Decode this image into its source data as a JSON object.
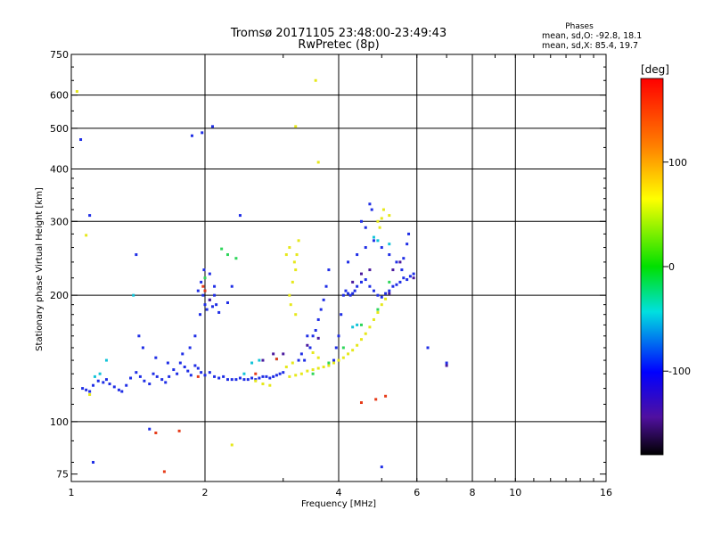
{
  "chart_data": {
    "type": "scatter",
    "title": "Tromsø 20171105 23:48:00-23:49:43",
    "subtitle": "RwPretec (8p)",
    "xlabel": "Frequency [MHz]",
    "ylabel": "Stationary phase Virtual Height [km]",
    "xscale": "log",
    "yscale": "log",
    "xlim": [
      1,
      16
    ],
    "ylim": [
      72,
      750
    ],
    "x_ticks": [
      1,
      2,
      4,
      6,
      8,
      10,
      16
    ],
    "y_ticks": [
      75,
      100,
      200,
      300,
      400,
      500,
      600,
      750
    ],
    "x_grid": [
      2,
      4,
      6,
      8,
      10
    ],
    "y_grid": [
      100,
      200,
      300,
      400,
      500,
      600
    ],
    "grid": true,
    "phases_box": {
      "heading": "Phases",
      "line1": "mean, sd,O: -92.8, 18.1",
      "line2": "mean, sd,X:  85.4, 19.7"
    },
    "colorbar": {
      "unit": "[deg]",
      "range": [
        -180,
        180
      ],
      "ticks": [
        100,
        0,
        -100
      ],
      "colormap": "rainbow"
    },
    "series": [
      {
        "phase_deg": -100,
        "color": "#1f2ee6",
        "points": [
          [
            1.06,
            120
          ],
          [
            1.08,
            119
          ],
          [
            1.1,
            118
          ],
          [
            1.12,
            122
          ],
          [
            1.15,
            125
          ],
          [
            1.18,
            124
          ],
          [
            1.2,
            126
          ],
          [
            1.22,
            123
          ],
          [
            1.25,
            121
          ],
          [
            1.28,
            119
          ],
          [
            1.3,
            118
          ],
          [
            1.33,
            122
          ],
          [
            1.36,
            127
          ],
          [
            1.4,
            131
          ],
          [
            1.43,
            128
          ],
          [
            1.46,
            125
          ],
          [
            1.5,
            123
          ],
          [
            1.53,
            130
          ],
          [
            1.56,
            128
          ],
          [
            1.6,
            126
          ],
          [
            1.63,
            124
          ],
          [
            1.66,
            128
          ],
          [
            1.7,
            133
          ],
          [
            1.73,
            130
          ],
          [
            1.76,
            138
          ],
          [
            1.8,
            135
          ],
          [
            1.83,
            132
          ],
          [
            1.86,
            129
          ],
          [
            1.9,
            136
          ],
          [
            1.93,
            134
          ],
          [
            1.96,
            131
          ],
          [
            2.0,
            129
          ],
          [
            2.05,
            131
          ],
          [
            2.1,
            128
          ],
          [
            2.15,
            127
          ],
          [
            2.2,
            128
          ],
          [
            2.25,
            126
          ],
          [
            2.3,
            126
          ],
          [
            2.35,
            126
          ],
          [
            2.4,
            127
          ],
          [
            2.45,
            126
          ],
          [
            2.5,
            126
          ],
          [
            2.55,
            127
          ],
          [
            2.6,
            126
          ],
          [
            2.65,
            127
          ],
          [
            2.7,
            128
          ],
          [
            2.75,
            128
          ],
          [
            2.8,
            127
          ],
          [
            2.85,
            128
          ],
          [
            2.9,
            129
          ],
          [
            2.95,
            130
          ],
          [
            3.0,
            131
          ],
          [
            1.42,
            160
          ],
          [
            1.45,
            150
          ],
          [
            1.4,
            250
          ],
          [
            1.55,
            142
          ],
          [
            1.65,
            138
          ],
          [
            1.78,
            145
          ],
          [
            1.85,
            150
          ],
          [
            1.9,
            160
          ],
          [
            1.95,
            180
          ],
          [
            1.98,
            200
          ],
          [
            2.0,
            190
          ],
          [
            2.02,
            185
          ],
          [
            2.05,
            195
          ],
          [
            2.08,
            188
          ],
          [
            2.1,
            200
          ],
          [
            2.12,
            190
          ],
          [
            2.15,
            182
          ],
          [
            1.93,
            205
          ],
          [
            1.96,
            215
          ],
          [
            1.99,
            230
          ],
          [
            2.05,
            225
          ],
          [
            2.1,
            210
          ],
          [
            2.25,
            192
          ],
          [
            2.3,
            210
          ],
          [
            1.1,
            310
          ],
          [
            1.05,
            470
          ],
          [
            1.87,
            480
          ],
          [
            1.97,
            488
          ],
          [
            2.08,
            505
          ],
          [
            2.4,
            310
          ],
          [
            3.5,
            160
          ],
          [
            3.55,
            165
          ],
          [
            3.6,
            175
          ],
          [
            3.65,
            185
          ],
          [
            3.7,
            195
          ],
          [
            3.75,
            210
          ],
          [
            3.8,
            230
          ],
          [
            3.4,
            160
          ],
          [
            3.45,
            150
          ],
          [
            3.3,
            145
          ],
          [
            3.35,
            140
          ],
          [
            3.25,
            140
          ],
          [
            3.9,
            140
          ],
          [
            3.95,
            150
          ],
          [
            4.0,
            160
          ],
          [
            4.05,
            180
          ],
          [
            4.1,
            200
          ],
          [
            4.15,
            205
          ],
          [
            4.2,
            202
          ],
          [
            4.25,
            200
          ],
          [
            4.3,
            202
          ],
          [
            4.35,
            205
          ],
          [
            4.4,
            210
          ],
          [
            4.5,
            215
          ],
          [
            4.6,
            218
          ],
          [
            4.7,
            210
          ],
          [
            4.8,
            205
          ],
          [
            4.9,
            200
          ],
          [
            5.0,
            198
          ],
          [
            5.1,
            202
          ],
          [
            5.2,
            205
          ],
          [
            5.3,
            210
          ],
          [
            5.4,
            212
          ],
          [
            5.5,
            215
          ],
          [
            5.6,
            220
          ],
          [
            5.7,
            218
          ],
          [
            5.8,
            222
          ],
          [
            5.9,
            225
          ],
          [
            5.55,
            230
          ],
          [
            5.6,
            245
          ],
          [
            5.7,
            265
          ],
          [
            5.75,
            280
          ],
          [
            5.4,
            240
          ],
          [
            5.2,
            250
          ],
          [
            5.0,
            260
          ],
          [
            4.8,
            270
          ],
          [
            4.6,
            260
          ],
          [
            4.4,
            250
          ],
          [
            4.2,
            240
          ],
          [
            4.7,
            330
          ],
          [
            4.75,
            320
          ],
          [
            4.6,
            290
          ],
          [
            4.5,
            300
          ],
          [
            6.35,
            150
          ],
          [
            7.0,
            138
          ],
          [
            5.0,
            78
          ],
          [
            1.5,
            96
          ],
          [
            1.12,
            80
          ]
        ]
      },
      {
        "phase_deg": 75,
        "color": "#e6e81a",
        "points": [
          [
            3.1,
            128
          ],
          [
            3.2,
            129
          ],
          [
            3.3,
            130
          ],
          [
            3.4,
            132
          ],
          [
            3.5,
            133
          ],
          [
            3.6,
            134
          ],
          [
            3.7,
            135
          ],
          [
            3.8,
            136
          ],
          [
            3.9,
            138
          ],
          [
            4.0,
            140
          ],
          [
            4.1,
            142
          ],
          [
            4.2,
            145
          ],
          [
            4.3,
            148
          ],
          [
            4.4,
            152
          ],
          [
            4.5,
            157
          ],
          [
            4.6,
            162
          ],
          [
            4.7,
            168
          ],
          [
            4.8,
            175
          ],
          [
            4.9,
            182
          ],
          [
            5.0,
            190
          ],
          [
            5.1,
            196
          ],
          [
            4.95,
            290
          ],
          [
            5.0,
            305
          ],
          [
            5.05,
            320
          ],
          [
            4.9,
            300
          ],
          [
            5.2,
            310
          ],
          [
            3.1,
            200
          ],
          [
            3.15,
            215
          ],
          [
            3.2,
            230
          ],
          [
            3.22,
            250
          ],
          [
            3.25,
            270
          ],
          [
            3.18,
            240
          ],
          [
            3.05,
            250
          ],
          [
            3.1,
            260
          ],
          [
            3.12,
            190
          ],
          [
            3.2,
            180
          ],
          [
            3.6,
            415
          ],
          [
            3.55,
            650
          ],
          [
            3.2,
            505
          ],
          [
            1.03,
            612
          ],
          [
            1.08,
            278
          ],
          [
            1.1,
            116
          ],
          [
            2.3,
            88
          ],
          [
            2.6,
            125
          ],
          [
            2.7,
            123
          ],
          [
            2.8,
            122
          ],
          [
            3.5,
            146
          ],
          [
            3.6,
            142
          ],
          [
            3.05,
            135
          ],
          [
            3.15,
            138
          ]
        ]
      },
      {
        "phase_deg": 20,
        "color": "#2ed65a",
        "points": [
          [
            2.25,
            250
          ],
          [
            2.18,
            258
          ],
          [
            2.35,
            245
          ],
          [
            2.0,
            220
          ],
          [
            3.5,
            130
          ],
          [
            3.8,
            138
          ],
          [
            4.1,
            150
          ],
          [
            4.5,
            170
          ],
          [
            5.2,
            215
          ],
          [
            4.9,
            185
          ]
        ]
      },
      {
        "phase_deg": -30,
        "color": "#12c4d8",
        "points": [
          [
            1.2,
            140
          ],
          [
            1.16,
            130
          ],
          [
            1.13,
            128
          ],
          [
            1.38,
            200
          ],
          [
            2.45,
            130
          ],
          [
            2.55,
            138
          ],
          [
            2.65,
            140
          ],
          [
            2.9,
            141
          ],
          [
            4.8,
            275
          ],
          [
            4.9,
            270
          ],
          [
            5.2,
            265
          ],
          [
            4.3,
            168
          ],
          [
            4.4,
            170
          ]
        ]
      },
      {
        "phase_deg": -150,
        "color": "#4b1a9e",
        "points": [
          [
            2.0,
            205
          ],
          [
            2.05,
            195
          ],
          [
            2.7,
            140
          ],
          [
            2.85,
            145
          ],
          [
            3.0,
            145
          ],
          [
            3.4,
            152
          ],
          [
            3.6,
            158
          ],
          [
            4.3,
            215
          ],
          [
            4.5,
            225
          ],
          [
            4.7,
            230
          ],
          [
            5.3,
            230
          ],
          [
            5.5,
            240
          ],
          [
            5.9,
            220
          ],
          [
            5.2,
            202
          ],
          [
            7.0,
            136
          ]
        ]
      },
      {
        "phase_deg": 150,
        "color": "#e63c1a",
        "points": [
          [
            1.55,
            94
          ],
          [
            1.75,
            95
          ],
          [
            2.0,
            205
          ],
          [
            1.98,
            210
          ],
          [
            4.5,
            111
          ],
          [
            4.85,
            113
          ],
          [
            5.1,
            115
          ],
          [
            1.93,
            128
          ],
          [
            2.9,
            141
          ],
          [
            2.6,
            130
          ],
          [
            1.62,
            76
          ]
        ]
      }
    ]
  }
}
